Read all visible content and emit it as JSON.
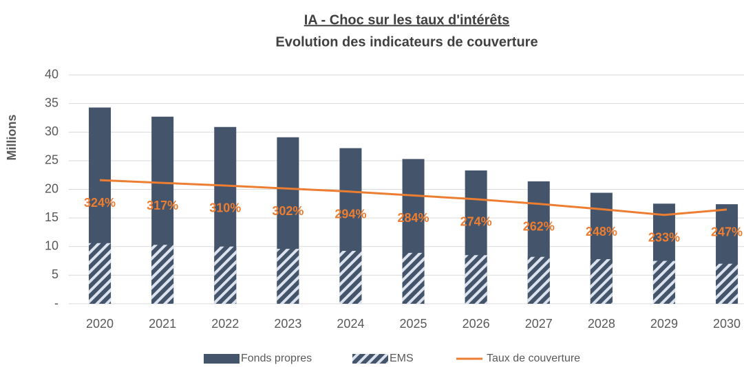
{
  "chart_data": {
    "type": "bar",
    "title": "IA - Choc sur les taux d'intérêts",
    "subtitle": "Evolution des indicateurs de couverture",
    "y_label": "Millions",
    "categories": [
      "2020",
      "2021",
      "2022",
      "2023",
      "2024",
      "2025",
      "2026",
      "2027",
      "2028",
      "2029",
      "2030"
    ],
    "series": [
      {
        "name": "Fonds propres",
        "type": "bar",
        "color": "#44546a",
        "values": [
          34.3,
          32.7,
          30.9,
          29.1,
          27.2,
          25.3,
          23.3,
          21.4,
          19.4,
          17.5,
          17.4
        ]
      },
      {
        "name": "EMS",
        "type": "hatched-bar",
        "color": "#44546a",
        "values": [
          10.6,
          10.3,
          10.0,
          9.6,
          9.25,
          8.9,
          8.5,
          8.2,
          7.8,
          7.5,
          7.0
        ]
      },
      {
        "name": "Taux de couverture",
        "type": "line",
        "axis": "y2",
        "color": "#ed7d31",
        "values": [
          324,
          317,
          310,
          302,
          294,
          284,
          274,
          262,
          248,
          233,
          247
        ],
        "value_labels": [
          "324%",
          "317%",
          "310%",
          "302%",
          "294%",
          "284%",
          "274%",
          "262%",
          "248%",
          "233%",
          "247%"
        ]
      }
    ],
    "ylim": [
      0,
      40
    ],
    "yticks": [
      {
        "value": 0,
        "label": "-"
      },
      5,
      10,
      15,
      20,
      25,
      30,
      35,
      40
    ],
    "y2lim": [
      0,
      600
    ],
    "grid": true,
    "legend": "bottom"
  }
}
